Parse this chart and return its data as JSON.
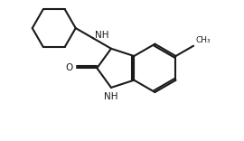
{
  "background_color": "#ffffff",
  "line_color": "#1a1a1a",
  "line_width": 1.5,
  "text_color": "#1a1a1a",
  "font_size": 7.5,
  "fig_width": 2.7,
  "fig_height": 1.56,
  "dpi": 100,
  "xlim": [
    0.0,
    10.0
  ],
  "ylim": [
    0.0,
    5.8
  ]
}
